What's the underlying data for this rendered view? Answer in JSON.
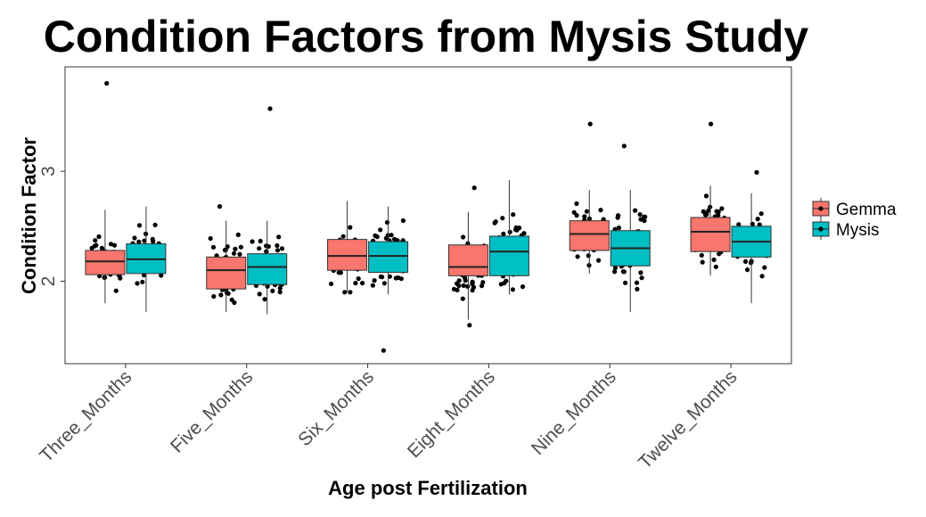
{
  "chart_data": {
    "type": "box",
    "title": "Condition Factors from Mysis Study",
    "xlabel": "Age post Fertilization",
    "ylabel": "Condition Factor",
    "ylim": [
      1.25,
      3.95
    ],
    "yticks": [
      2,
      3
    ],
    "grid": false,
    "legend_position": "right",
    "categories": [
      "Three_Months",
      "Five_Months",
      "Six_Months",
      "Eight_Months",
      "Nine_Months",
      "Twelve_Months"
    ],
    "series": [
      {
        "name": "Gemma",
        "color": "#F8766D",
        "boxes": [
          {
            "min": 1.8,
            "q1": 2.06,
            "median": 2.18,
            "q3": 2.28,
            "max": 2.65
          },
          {
            "min": 1.72,
            "q1": 1.93,
            "median": 2.1,
            "q3": 2.22,
            "max": 2.55
          },
          {
            "min": 1.9,
            "q1": 2.1,
            "median": 2.23,
            "q3": 2.38,
            "max": 2.73
          },
          {
            "min": 1.65,
            "q1": 2.05,
            "median": 2.13,
            "q3": 2.33,
            "max": 2.63
          },
          {
            "min": 2.07,
            "q1": 2.28,
            "median": 2.43,
            "q3": 2.55,
            "max": 2.83
          },
          {
            "min": 2.05,
            "q1": 2.27,
            "median": 2.45,
            "q3": 2.58,
            "max": 2.87
          }
        ],
        "outliers": [
          [
            0,
            3.8
          ],
          [
            1,
            2.68
          ],
          [
            3,
            2.85
          ],
          [
            3,
            1.6
          ],
          [
            4,
            3.43
          ],
          [
            5,
            3.43
          ]
        ]
      },
      {
        "name": "Mysis",
        "color": "#00BFC4",
        "boxes": [
          {
            "min": 1.72,
            "q1": 2.07,
            "median": 2.2,
            "q3": 2.34,
            "max": 2.68
          },
          {
            "min": 1.7,
            "q1": 1.97,
            "median": 2.13,
            "q3": 2.25,
            "max": 2.55
          },
          {
            "min": 1.88,
            "q1": 2.08,
            "median": 2.23,
            "q3": 2.36,
            "max": 2.68
          },
          {
            "min": 1.88,
            "q1": 2.05,
            "median": 2.27,
            "q3": 2.41,
            "max": 2.92
          },
          {
            "min": 1.72,
            "q1": 2.14,
            "median": 2.3,
            "q3": 2.46,
            "max": 2.83
          },
          {
            "min": 1.8,
            "q1": 2.22,
            "median": 2.36,
            "q3": 2.5,
            "max": 2.8
          }
        ],
        "outliers": [
          [
            1,
            3.57
          ],
          [
            2,
            1.37
          ],
          [
            4,
            3.23
          ],
          [
            5,
            2.99
          ]
        ]
      }
    ]
  }
}
